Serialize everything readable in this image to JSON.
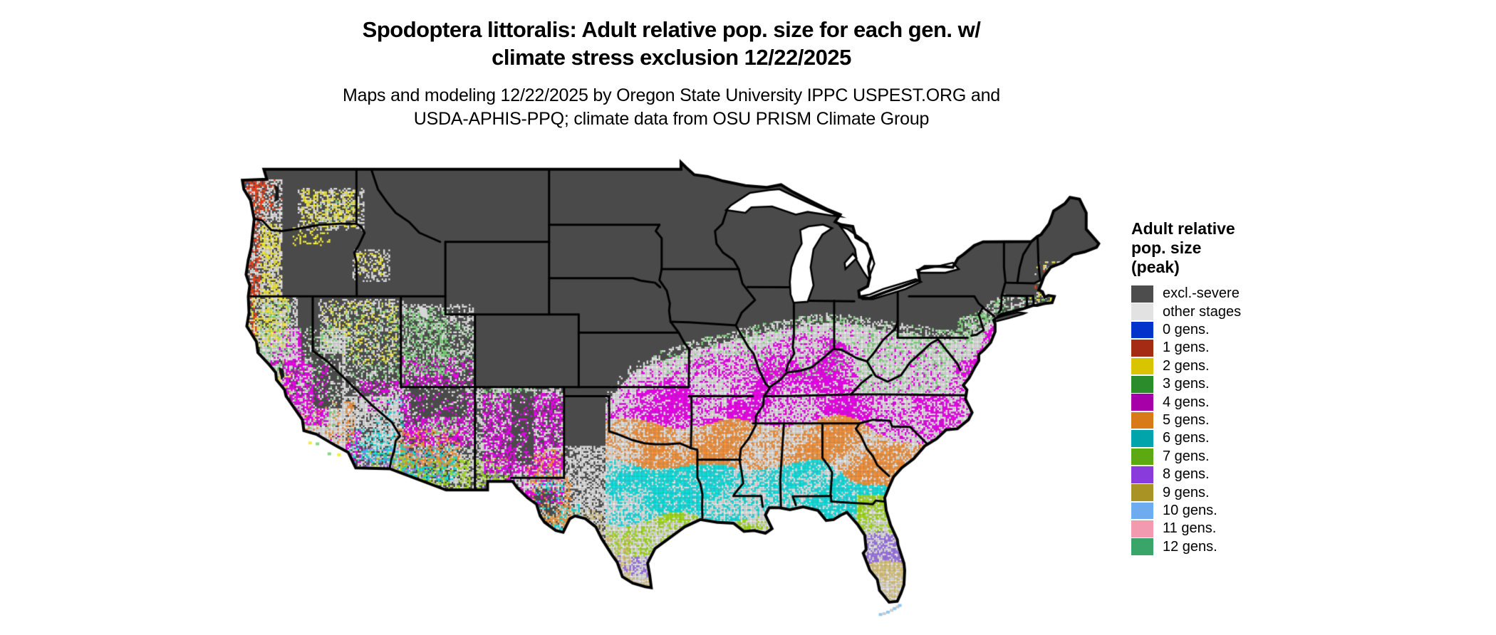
{
  "title": {
    "line1": "Spodoptera littoralis: Adult relative pop. size for each gen. w/",
    "line2": "climate stress exclusion 12/22/2025"
  },
  "subtitle": {
    "line1": "Maps and modeling 12/22/2025 by Oregon State University IPPC USPEST.ORG and",
    "line2": "USDA-APHIS-PPQ; climate data from OSU PRISM Climate Group"
  },
  "legend": {
    "title_lines": [
      "Adult relative",
      "pop. size",
      "(peak)"
    ],
    "items": [
      {
        "key": "excl",
        "label": "excl.-severe",
        "swatch": "#4D4D4D",
        "map_color": "#4A4A4A"
      },
      {
        "key": "other",
        "label": "other stages",
        "swatch": "#E2E2E2",
        "map_color": "#E4E4E4"
      },
      {
        "key": "g0",
        "label": "0 gens.",
        "swatch": "#0433CC",
        "map_color": "#2B64F5"
      },
      {
        "key": "g1",
        "label": "1 gens.",
        "swatch": "#A62B14",
        "map_color": "#F04018"
      },
      {
        "key": "g2",
        "label": "2 gens.",
        "swatch": "#D8C500",
        "map_color": "#F5ED3C"
      },
      {
        "key": "g3",
        "label": "3 gens.",
        "swatch": "#2B8C2B",
        "map_color": "#80D980"
      },
      {
        "key": "g4",
        "label": "4 gens.",
        "swatch": "#A800A8",
        "map_color": "#EE00EE"
      },
      {
        "key": "g5",
        "label": "5 gens.",
        "swatch": "#D97A18",
        "map_color": "#F5953F"
      },
      {
        "key": "g6",
        "label": "6 gens.",
        "swatch": "#00A4AA",
        "map_color": "#14E2E2"
      },
      {
        "key": "g7",
        "label": "7 gens.",
        "swatch": "#5DA912",
        "map_color": "#A3E01A"
      },
      {
        "key": "g8",
        "label": "8 gens.",
        "swatch": "#8A3BDB",
        "map_color": "#9E74E8"
      },
      {
        "key": "g9",
        "label": "9 gens.",
        "swatch": "#A99324",
        "map_color": "#DFC97E"
      },
      {
        "key": "g10",
        "label": "10 gens.",
        "swatch": "#6FACEF",
        "map_color": "#8FC6F2"
      },
      {
        "key": "g11",
        "label": "11 gens.",
        "swatch": "#F29BB0",
        "map_color": "#F8AEC2"
      },
      {
        "key": "g12",
        "label": "12 gens.",
        "swatch": "#3AA569",
        "map_color": "#5FCB92"
      }
    ]
  },
  "map": {
    "region": "Continental United States",
    "type": "raster choropleth",
    "description": "Speckled raster map; northern states shaded excl.-severe (dark gray); southern latitudinal bands run 3-4-5-6-7-8-9 gens. from north to south, 10 gens. in the Florida Keys; Pacific Northwest coast shows 1-2 gens."
  }
}
